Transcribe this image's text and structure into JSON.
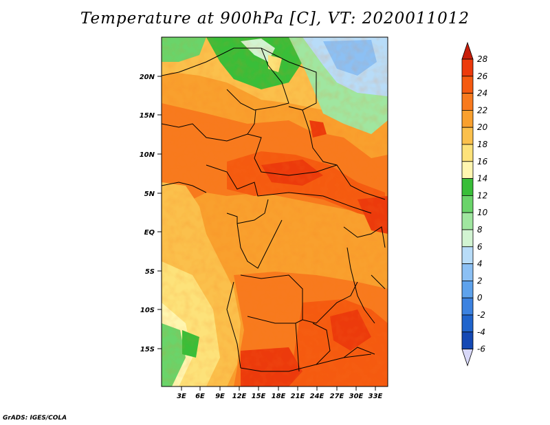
{
  "title": "Temperature at 900hPa [C], VT: 2020011012",
  "credit": "GrADS: IGES/COLA",
  "map": {
    "lat_labels": [
      "20N",
      "15N",
      "10N",
      "5N",
      "EQ",
      "5S",
      "10S",
      "15S"
    ],
    "lon_labels": [
      "3E",
      "6E",
      "9E",
      "12E",
      "15E",
      "18E",
      "21E",
      "24E",
      "27E",
      "30E",
      "33E"
    ]
  },
  "colorbar": {
    "labels": [
      "28",
      "26",
      "24",
      "22",
      "20",
      "18",
      "16",
      "14",
      "12",
      "10",
      "8",
      "6",
      "4",
      "2",
      "0",
      "-2",
      "-4",
      "-6"
    ],
    "colors": [
      "#ec3a0c",
      "#f55a10",
      "#f87a1e",
      "#f9a02e",
      "#fbc04c",
      "#fde27a",
      "#fff6b0",
      "#39be39",
      "#6ad46a",
      "#a0e6a0",
      "#d2f4d2",
      "#b8dcf8",
      "#8cc0f4",
      "#5ea2ec",
      "#3c82e0",
      "#2064cc",
      "#1448b4",
      "#0a2a8c",
      "#14105a"
    ],
    "top_arrow_color": "#c81e0a",
    "bottom_arrow_color": "#d8d8f8"
  }
}
